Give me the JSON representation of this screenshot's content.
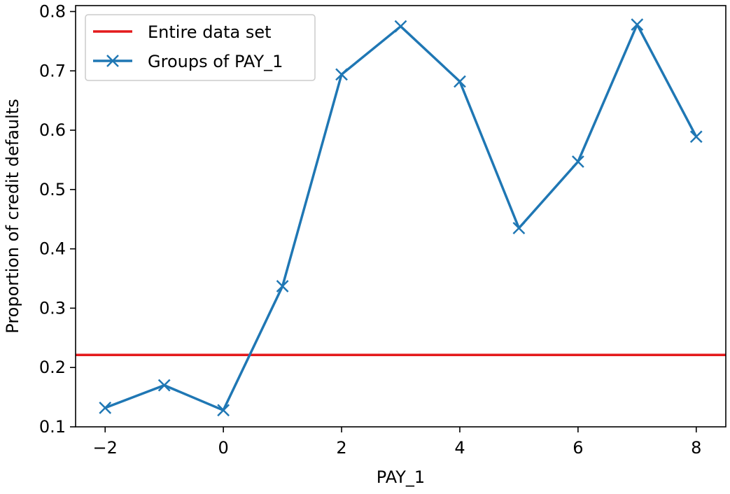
{
  "chart_data": {
    "type": "line",
    "title": "",
    "xlabel": "PAY_1",
    "ylabel": "Proportion of credit defaults",
    "xlim": [
      -2.5,
      8.5
    ],
    "ylim": [
      0.1,
      0.81
    ],
    "xticks": [
      -2,
      0,
      2,
      4,
      6,
      8
    ],
    "xtick_labels": [
      "−2",
      "0",
      "2",
      "4",
      "6",
      "8"
    ],
    "yticks": [
      0.1,
      0.2,
      0.3,
      0.4,
      0.5,
      0.6,
      0.7,
      0.8
    ],
    "ytick_labels": [
      "0.1",
      "0.2",
      "0.3",
      "0.4",
      "0.5",
      "0.6",
      "0.7",
      "0.8"
    ],
    "grid": false,
    "legend_position": "top-left",
    "reference_line": {
      "name": "Entire data set",
      "y": 0.2212,
      "color": "#e41a1c"
    },
    "series": [
      {
        "name": "Groups of PAY_1",
        "color": "#1f77b4",
        "marker": "x",
        "x": [
          -2,
          -1,
          0,
          1,
          2,
          3,
          4,
          5,
          6,
          7,
          8
        ],
        "values": [
          0.132,
          0.17,
          0.128,
          0.337,
          0.694,
          0.775,
          0.682,
          0.435,
          0.547,
          0.778,
          0.589
        ]
      }
    ]
  }
}
